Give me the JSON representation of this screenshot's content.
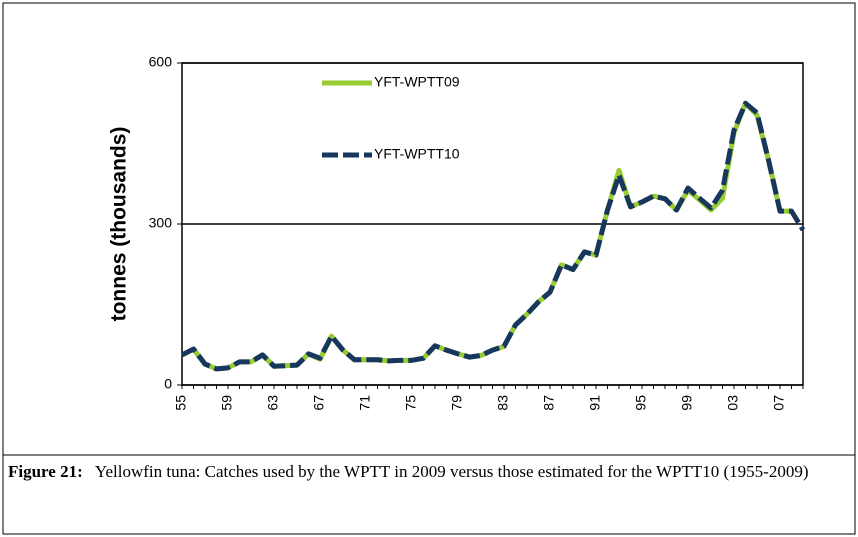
{
  "chart_data": {
    "type": "line",
    "y_label": "tonnes (thousands)",
    "categories": [
      "55",
      null,
      null,
      null,
      "59",
      null,
      null,
      null,
      "63",
      null,
      null,
      null,
      "67",
      null,
      null,
      null,
      "71",
      null,
      null,
      null,
      "75",
      null,
      null,
      null,
      "79",
      null,
      null,
      null,
      "83",
      null,
      null,
      null,
      "87",
      null,
      null,
      null,
      "91",
      null,
      null,
      null,
      "95",
      null,
      null,
      null,
      "99",
      null,
      null,
      null,
      "03",
      null,
      null,
      null,
      "07",
      null,
      null
    ],
    "series": [
      {
        "name": "YFT-WPTT09",
        "color": "#99cc33",
        "dashed": false,
        "values": [
          56,
          67,
          39,
          30,
          32,
          43,
          43,
          56,
          35,
          36,
          37,
          58,
          48,
          91,
          65,
          47,
          47,
          47,
          45,
          46,
          46,
          50,
          73,
          65,
          58,
          52,
          55,
          65,
          72,
          112,
          132,
          155,
          173,
          224,
          215,
          248,
          242,
          326,
          400,
          332,
          341,
          352,
          347,
          326,
          363,
          345,
          326,
          348,
          470,
          525,
          503,
          419,
          324,
          324,
          null
        ]
      },
      {
        "name": "YFT-WPTT10",
        "color": "#17375e",
        "dashed": true,
        "values": [
          56,
          67,
          39,
          30,
          32,
          43,
          43,
          56,
          35,
          36,
          37,
          58,
          50,
          91,
          65,
          47,
          47,
          47,
          45,
          46,
          46,
          50,
          73,
          65,
          58,
          52,
          55,
          65,
          72,
          112,
          132,
          155,
          173,
          224,
          215,
          248,
          242,
          326,
          391,
          332,
          341,
          352,
          347,
          326,
          367,
          348,
          330,
          363,
          475,
          525,
          507,
          419,
          324,
          324,
          289
        ]
      }
    ],
    "ylim": [
      0,
      600
    ],
    "yticks": [
      0,
      300,
      600
    ],
    "grid": true
  },
  "caption": {
    "label": "Figure 21:",
    "text": "Yellowfin tuna: Catches used by the WPTT in 2009 versus those estimated for the WPTT10 (1955-2009)"
  }
}
